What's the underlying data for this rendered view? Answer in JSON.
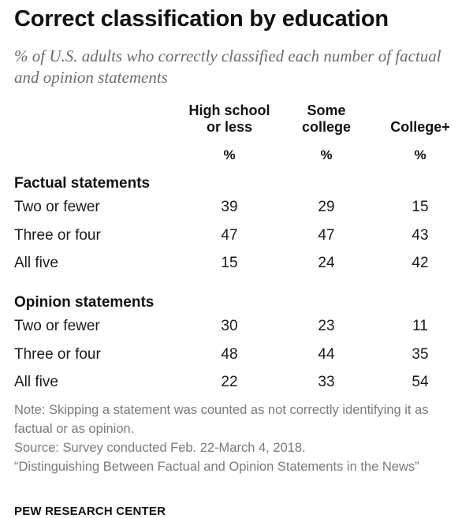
{
  "title": "Correct classification by education",
  "subtitle": "% of U.S. adults who correctly classified each number of factual and opinion statements",
  "chart_data": {
    "type": "table",
    "columns": [
      {
        "line1": "High school",
        "line2": "or less",
        "unit": "%"
      },
      {
        "line1": "Some",
        "line2": "college",
        "unit": "%"
      },
      {
        "line1": "",
        "line2": "College+",
        "unit": "%"
      }
    ],
    "sections": [
      {
        "title": "Factual statements",
        "rows": [
          {
            "label": "Two or fewer",
            "values": [
              39,
              29,
              15
            ]
          },
          {
            "label": "Three or four",
            "values": [
              47,
              47,
              43
            ]
          },
          {
            "label": "All five",
            "values": [
              15,
              24,
              42
            ]
          }
        ]
      },
      {
        "title": "Opinion statements",
        "rows": [
          {
            "label": "Two or fewer",
            "values": [
              30,
              23,
              11
            ]
          },
          {
            "label": "Three or four",
            "values": [
              48,
              44,
              35
            ]
          },
          {
            "label": "All five",
            "values": [
              22,
              33,
              54
            ]
          }
        ]
      }
    ]
  },
  "notes": {
    "note": "Note: Skipping a statement was counted as not correctly identifying it as factual or as opinion.",
    "source": "Source: Survey conducted Feb. 22-March 4, 2018.",
    "report": "“Distinguishing Between Factual and Opinion Statements in the News”"
  },
  "footer": "PEW RESEARCH CENTER"
}
